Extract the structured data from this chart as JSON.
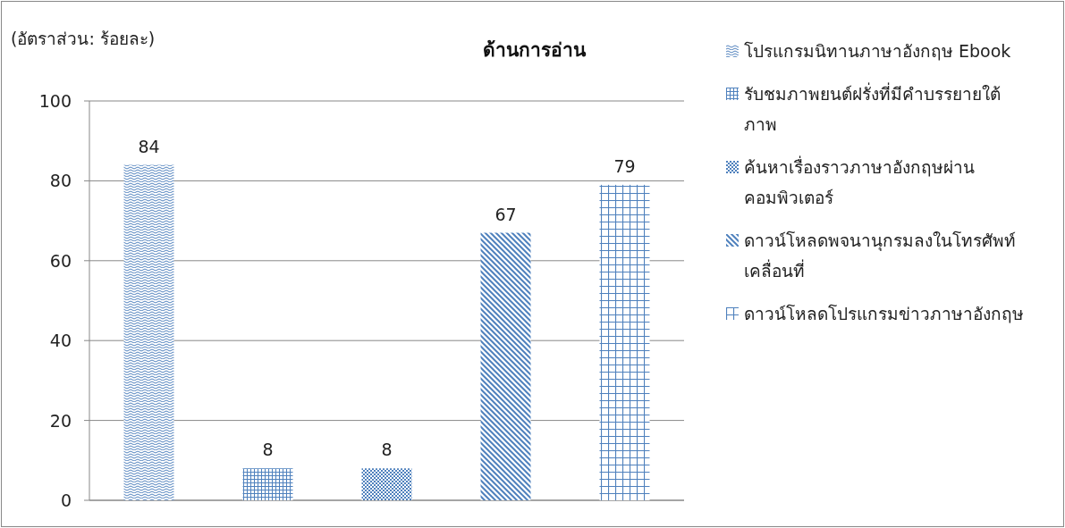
{
  "chart_data": {
    "type": "bar",
    "title": "ด้านการอ่าน",
    "ylabel": "(อัตราส่วน: ร้อยละ)",
    "categories": [
      null,
      null,
      null,
      null,
      null
    ],
    "series": [
      {
        "name": "โปรแกรมนิทานภาษาอังกฤษ Ebook",
        "color": "#4f81bd",
        "values": [
          84,
          null,
          null,
          null,
          null
        ]
      },
      {
        "name": "รับชมภาพยนต์ฝรั่งที่มีคำบรรยายใต้ภาพ",
        "color": "#4f81bd",
        "values": [
          null,
          8,
          null,
          null,
          null
        ]
      },
      {
        "name": "ค้นหาเรื่องราวภาษาอังกฤษผ่านคอมพิวเตอร์",
        "color": "#4f81bd",
        "values": [
          null,
          null,
          8,
          null,
          null
        ]
      },
      {
        "name": "ดาวน์โหลดพจนานุกรมลงในโทรศัพท์เคลื่อนที่",
        "color": "#4f81bd",
        "values": [
          null,
          null,
          null,
          67,
          null
        ]
      },
      {
        "name": "ดาวน์โหลดโปรแกรมข่าวภาษาอังกฤษ",
        "color": "#4f81bd",
        "values": [
          null,
          null,
          null,
          null,
          79
        ]
      }
    ],
    "ylim": [
      0,
      100
    ],
    "yticks": [
      0,
      20,
      40,
      60,
      80,
      100
    ],
    "grid": "y",
    "legend": "right",
    "data_labels": true
  }
}
